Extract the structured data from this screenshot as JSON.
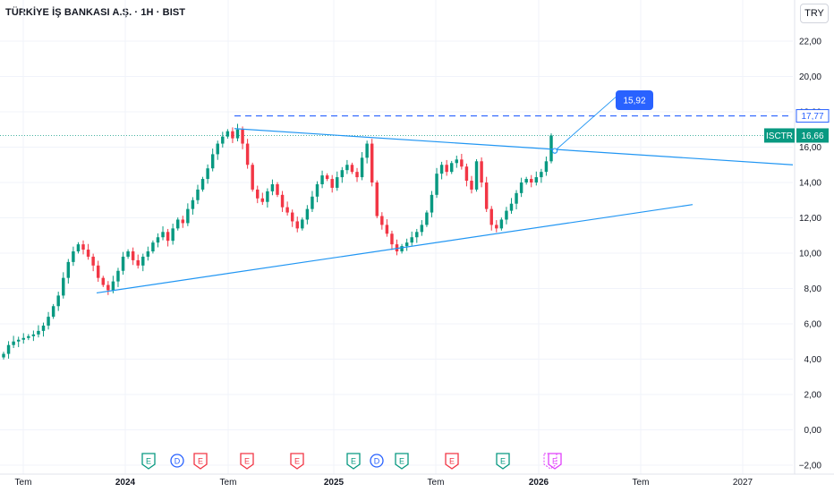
{
  "header": {
    "title": "TÜRKİYE İŞ BANKASI A.Ş. · 1H · BIST",
    "currency": "TRY"
  },
  "price_label": {
    "ticker": "ISCTR",
    "price": "16,66"
  },
  "level_label": "17,77",
  "callout_label": "15,92",
  "event_markers": [
    {
      "letter": "E",
      "type": "earnings-green"
    },
    {
      "letter": "D",
      "type": "dividend"
    },
    {
      "letter": "E",
      "type": "earnings-red"
    },
    {
      "letter": "E",
      "type": "earnings-red"
    },
    {
      "letter": "E",
      "type": "earnings-red"
    },
    {
      "letter": "E",
      "type": "earnings-green"
    },
    {
      "letter": "D",
      "type": "dividend"
    },
    {
      "letter": "E",
      "type": "earnings-green"
    },
    {
      "letter": "E",
      "type": "earnings-red"
    },
    {
      "letter": "E",
      "type": "earnings-green"
    },
    {
      "letter": "E",
      "type": "earnings-upcoming"
    }
  ],
  "colors": {
    "up": "#089981",
    "down": "#f23645",
    "trendline": "#2196f3",
    "level": "#2962ff",
    "grid": "#f0f3fa",
    "callout": "#2962ff",
    "dividend": "#2962ff",
    "upcoming": "#e040fb"
  },
  "chart_data": {
    "type": "candlestick",
    "ylim": [
      -2,
      23
    ],
    "y_ticks": [
      "22,00",
      "20,00",
      "18,00",
      "16,00",
      "14,00",
      "12,00",
      "10,00",
      "8,00",
      "6,00",
      "4,00",
      "2,00",
      "0,00",
      "−2,00"
    ],
    "x_ticks": [
      {
        "label": "Tem",
        "bold": false
      },
      {
        "label": "2024",
        "bold": true
      },
      {
        "label": "Tem",
        "bold": false
      },
      {
        "label": "2025",
        "bold": true
      },
      {
        "label": "Tem",
        "bold": false
      },
      {
        "label": "2026",
        "bold": true
      },
      {
        "label": "Tem",
        "bold": false
      },
      {
        "label": "2027",
        "bold": false
      }
    ],
    "last_price": 16.66,
    "horizontal_level": 17.77,
    "callout_value": 15.92,
    "closes": [
      4.3,
      4.8,
      5.0,
      5.1,
      5.2,
      5.3,
      5.4,
      5.6,
      5.9,
      6.4,
      7.0,
      7.6,
      8.6,
      9.5,
      10.1,
      10.5,
      10.2,
      9.8,
      9.3,
      8.6,
      8.2,
      7.9,
      8.4,
      9.0,
      9.8,
      10.1,
      9.6,
      9.3,
      9.8,
      10.1,
      10.6,
      10.9,
      11.2,
      10.7,
      11.4,
      11.9,
      11.7,
      12.5,
      13.0,
      13.6,
      14.2,
      14.8,
      15.6,
      16.2,
      16.6,
      16.9,
      16.5,
      17.0,
      16.2,
      15.0,
      13.6,
      13.1,
      12.9,
      13.5,
      13.9,
      13.3,
      12.6,
      12.3,
      11.8,
      11.4,
      11.9,
      12.5,
      13.2,
      13.9,
      14.4,
      14.2,
      13.7,
      14.3,
      14.7,
      15.0,
      14.6,
      14.3,
      15.4,
      16.2,
      14.0,
      12.1,
      11.6,
      11.1,
      10.5,
      10.1,
      10.4,
      10.6,
      10.9,
      11.2,
      11.6,
      12.3,
      13.3,
      14.5,
      15.0,
      14.6,
      15.1,
      15.3,
      14.9,
      14.1,
      13.6,
      15.2,
      14.0,
      12.5,
      11.6,
      11.4,
      11.9,
      12.4,
      12.8,
      13.4,
      14.0,
      14.2,
      14.0,
      14.3,
      14.6,
      15.2,
      16.66
    ]
  }
}
